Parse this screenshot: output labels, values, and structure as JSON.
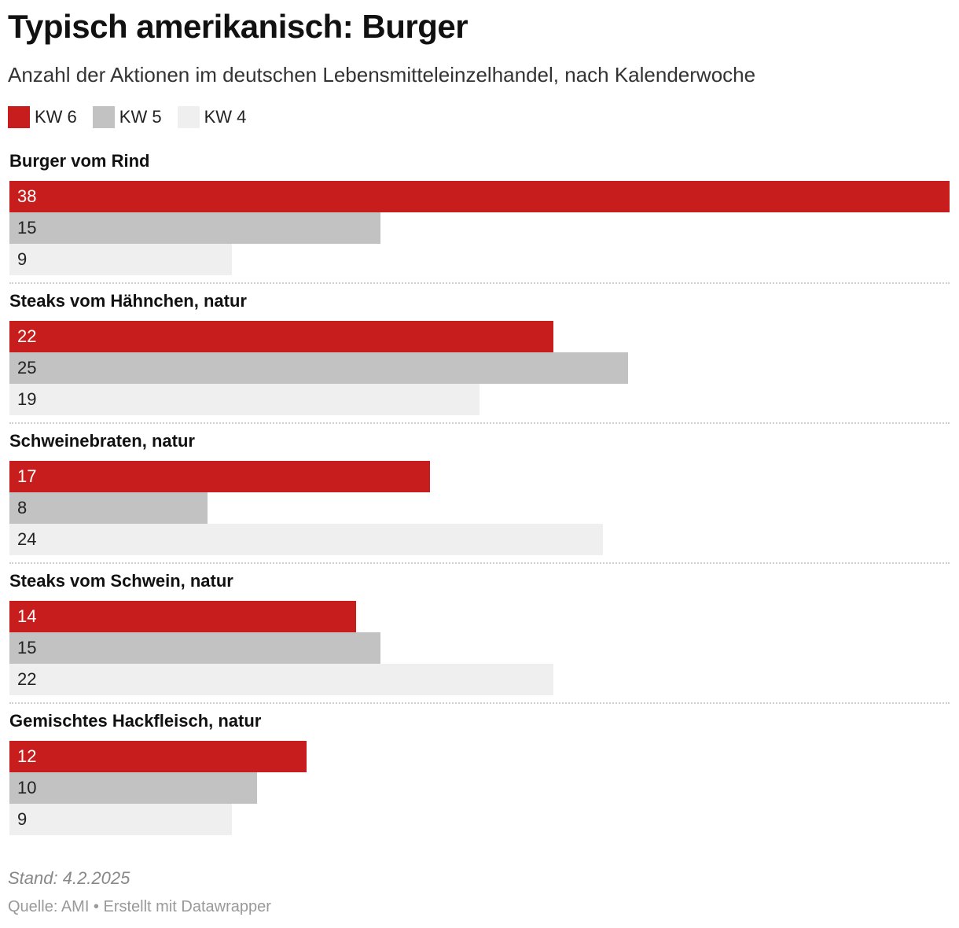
{
  "title": "Typisch amerikanisch: Burger",
  "subtitle": "Anzahl der Aktionen im deutschen Lebensmitteleinzelhandel, nach Kalenderwoche",
  "legend": [
    {
      "label": "KW 6",
      "color": "#c81d1d"
    },
    {
      "label": "KW 5",
      "color": "#c2c2c2"
    },
    {
      "label": "KW 4",
      "color": "#efefef"
    }
  ],
  "chart_data": {
    "type": "bar",
    "orientation": "horizontal",
    "grouped": true,
    "categories": [
      "Burger vom Rind",
      "Steaks vom Hähnchen, natur",
      "Schweinebraten, natur",
      "Steaks vom Schwein, natur",
      "Gemischtes Hackfleisch, natur"
    ],
    "series": [
      {
        "name": "KW 6",
        "color": "#c81d1d",
        "values": [
          38,
          22,
          17,
          14,
          12
        ]
      },
      {
        "name": "KW 5",
        "color": "#c2c2c2",
        "values": [
          15,
          25,
          8,
          15,
          10
        ]
      },
      {
        "name": "KW 4",
        "color": "#efefef",
        "values": [
          9,
          19,
          24,
          22,
          9
        ]
      }
    ],
    "xlim": [
      0,
      38
    ],
    "data_labels": true,
    "legend_position": "top-left",
    "grid": false
  },
  "footer": {
    "stand": "Stand: 4.2.2025",
    "source": "Quelle: AMI • Erstellt mit Datawrapper"
  }
}
